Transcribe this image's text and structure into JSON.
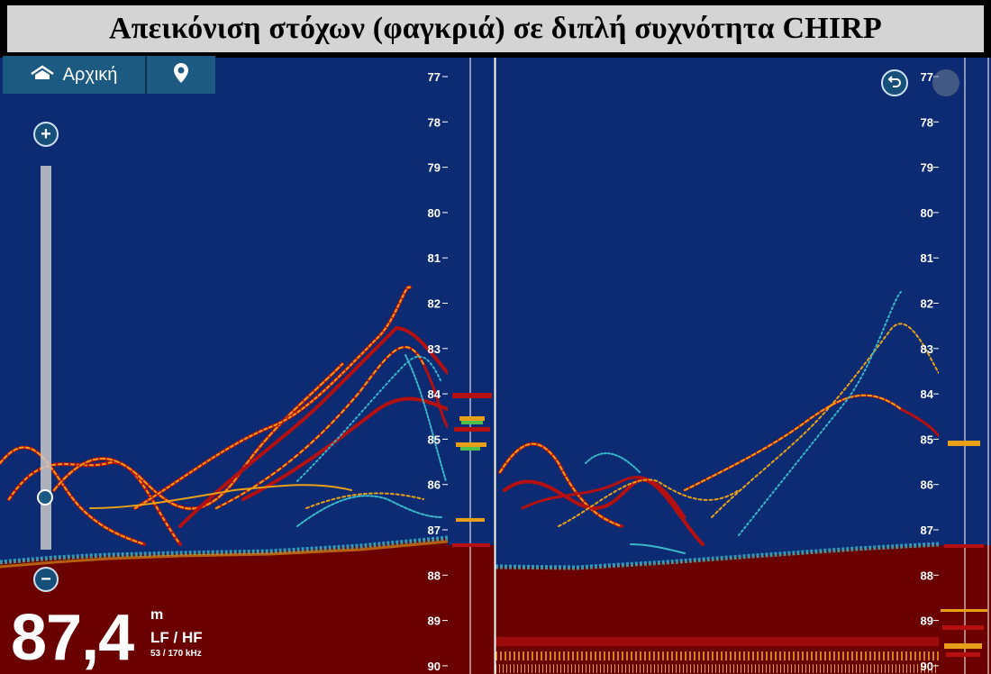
{
  "title": "Απεικόνιση στόχων (φαγκριά) σε διπλή συχνότητα CHIRP",
  "nav": {
    "home_label": "Αρχική",
    "home_icon": "home-icon",
    "waypoint_icon": "map-pin-icon"
  },
  "controls": {
    "zoom_in_label": "+",
    "zoom_out_label": "−",
    "back_icon": "undo-arrow-icon"
  },
  "depth": {
    "value": "87,4",
    "unit": "m",
    "frequency_mode": "LF / HF",
    "frequency_values": "53 / 170 kHz"
  },
  "scale": {
    "ticks": [
      "77",
      "78",
      "79",
      "80",
      "81",
      "82",
      "83",
      "84",
      "85",
      "86",
      "87",
      "88",
      "89",
      "90"
    ]
  },
  "colors": {
    "water": "#0d2b73",
    "bottom": "#6b0000",
    "target_strong": "#b41010",
    "target_mid": "#e8a019",
    "target_weak": "#38b8c8",
    "ui_blue": "#1d5a82"
  }
}
